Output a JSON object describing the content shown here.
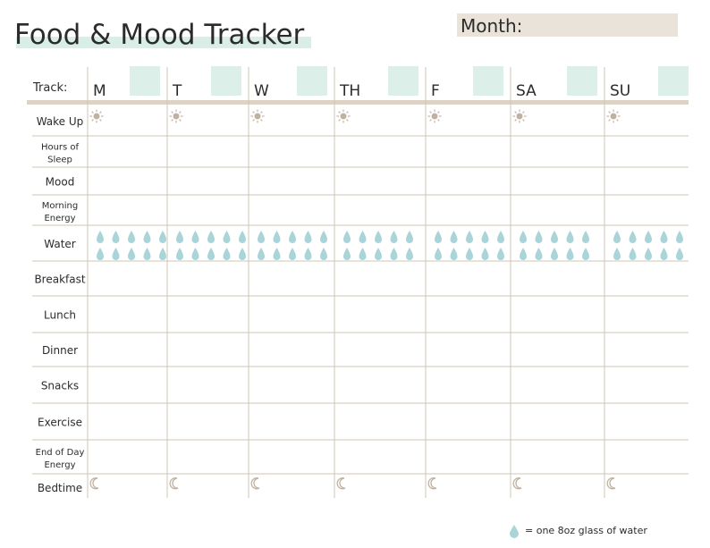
{
  "header": {
    "title": "Food & Mood Tracker",
    "month_label": "Month:"
  },
  "table": {
    "track_label": "Track:",
    "days": [
      "M",
      "T",
      "W",
      "TH",
      "F",
      "SA",
      "SU"
    ],
    "rows": [
      [
        "Wake Up"
      ],
      [
        "Hours of",
        "Sleep"
      ],
      [
        "Mood"
      ],
      [
        "Morning",
        "Energy"
      ],
      [
        "Water"
      ],
      [
        "Breakfast"
      ],
      [
        "Lunch"
      ],
      [
        "Dinner"
      ],
      [
        "Snacks"
      ],
      [
        "Exercise"
      ],
      [
        "End of Day",
        "Energy"
      ],
      [
        "Bedtime"
      ]
    ]
  },
  "legend": {
    "text": "= one 8oz glass of water"
  }
}
